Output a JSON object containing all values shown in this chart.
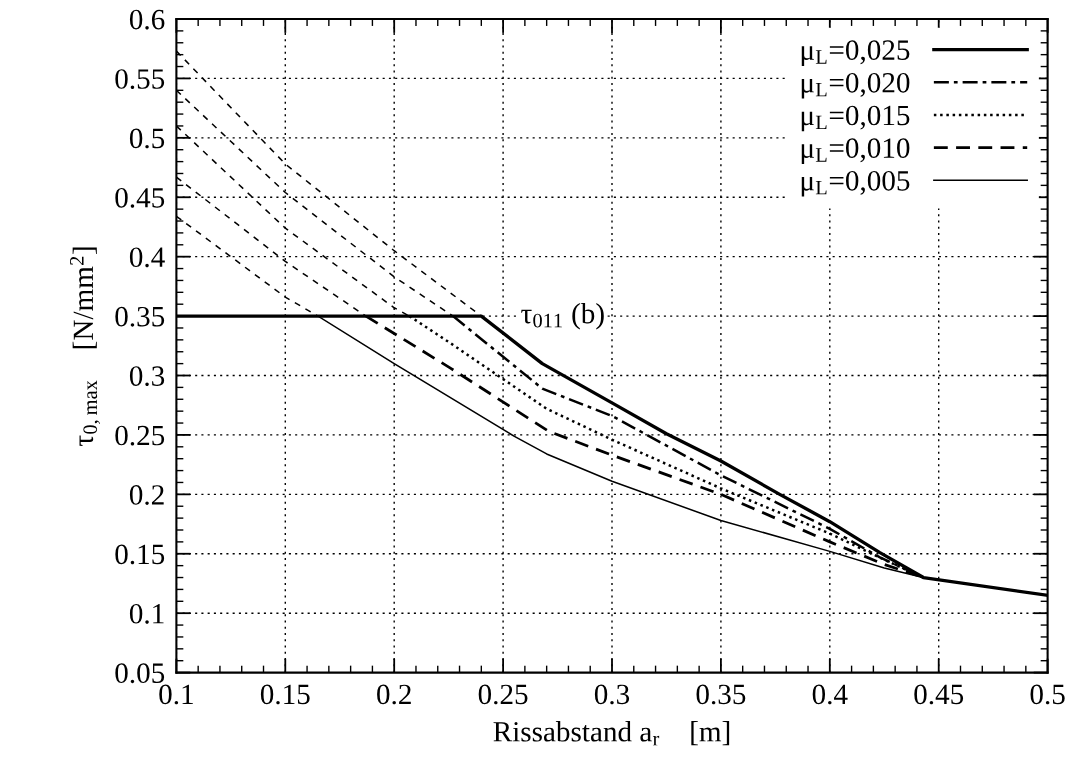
{
  "chart_data": {
    "type": "line",
    "xlabel": "Rissabstand a$_{r}$    [m]",
    "ylabel": "τ$_{0,max}$    [N/mm$^{2}$]",
    "xlim": [
      0.1,
      0.5
    ],
    "xticks": [
      0.1,
      0.15,
      0.2,
      0.25,
      0.3,
      0.35,
      0.4,
      0.45,
      0.5
    ],
    "ylim": [
      0.05,
      0.6
    ],
    "yticks": [
      0.05,
      0.1,
      0.15,
      0.2,
      0.25,
      0.3,
      0.35,
      0.4,
      0.45,
      0.5,
      0.55,
      0.6
    ],
    "grid": true,
    "legend": "top right",
    "annotations": [
      "τ$_{011}$ (b)"
    ],
    "series": [
      {
        "name": "μ$_{L}$=0,025",
        "color": "#000000",
        "line_style": "solid",
        "x": [
          0.1,
          0.24,
          0.268,
          0.3,
          0.325,
          0.35,
          0.377,
          0.4,
          0.423,
          0.443,
          0.5
        ],
        "values": [
          0.35,
          0.35,
          0.31,
          0.277,
          0.251,
          0.228,
          0.2,
          0.177,
          0.151,
          0.13,
          0.115
        ]
      },
      {
        "name": "μ$_{L}$=0,020",
        "color": "#000000",
        "line_style": "dashdot",
        "x": [
          0.227,
          0.268,
          0.3,
          0.35,
          0.4,
          0.423,
          0.443
        ],
        "values": [
          0.35,
          0.289,
          0.266,
          0.216,
          0.171,
          0.147,
          0.13
        ]
      },
      {
        "name": "μ$_{L}$=0,015",
        "color": "#000000",
        "line_style": "dotted",
        "x": [
          0.207,
          0.226,
          0.27,
          0.3,
          0.35,
          0.4,
          0.425,
          0.443
        ],
        "values": [
          0.35,
          0.327,
          0.272,
          0.246,
          0.205,
          0.167,
          0.145,
          0.13
        ]
      },
      {
        "name": "μ$_{L}$=0,010",
        "color": "#000000",
        "line_style": "dashed",
        "x": [
          0.187,
          0.226,
          0.271,
          0.3,
          0.35,
          0.4,
          0.425,
          0.443
        ],
        "values": [
          0.35,
          0.306,
          0.253,
          0.233,
          0.2,
          0.16,
          0.141,
          0.13
        ]
      },
      {
        "name": "μ$_{L}$=0,005",
        "color": "#000000",
        "line_style": "solid",
        "x": [
          0.165,
          0.2,
          0.255,
          0.27,
          0.3,
          0.35,
          0.4,
          0.425,
          0.443
        ],
        "values": [
          0.35,
          0.31,
          0.249,
          0.234,
          0.211,
          0.178,
          0.152,
          0.138,
          0.13
        ]
      },
      {
        "color": "#000000",
        "line_style": "dashed",
        "x": [
          0.1,
          0.15,
          0.2,
          0.24
        ],
        "values": [
          0.573,
          0.478,
          0.405,
          0.35
        ]
      },
      {
        "color": "#000000",
        "line_style": "dashed",
        "x": [
          0.1,
          0.15,
          0.2,
          0.227
        ],
        "values": [
          0.54,
          0.454,
          0.383,
          0.35
        ]
      },
      {
        "color": "#000000",
        "line_style": "dashed",
        "x": [
          0.1,
          0.15,
          0.2,
          0.207
        ],
        "values": [
          0.51,
          0.424,
          0.357,
          0.35
        ]
      },
      {
        "color": "#000000",
        "line_style": "dashed",
        "x": [
          0.1,
          0.15,
          0.187
        ],
        "values": [
          0.467,
          0.396,
          0.35
        ]
      },
      {
        "color": "#000000",
        "line_style": "dashed",
        "x": [
          0.1,
          0.15,
          0.165
        ],
        "values": [
          0.434,
          0.366,
          0.35
        ]
      }
    ]
  }
}
